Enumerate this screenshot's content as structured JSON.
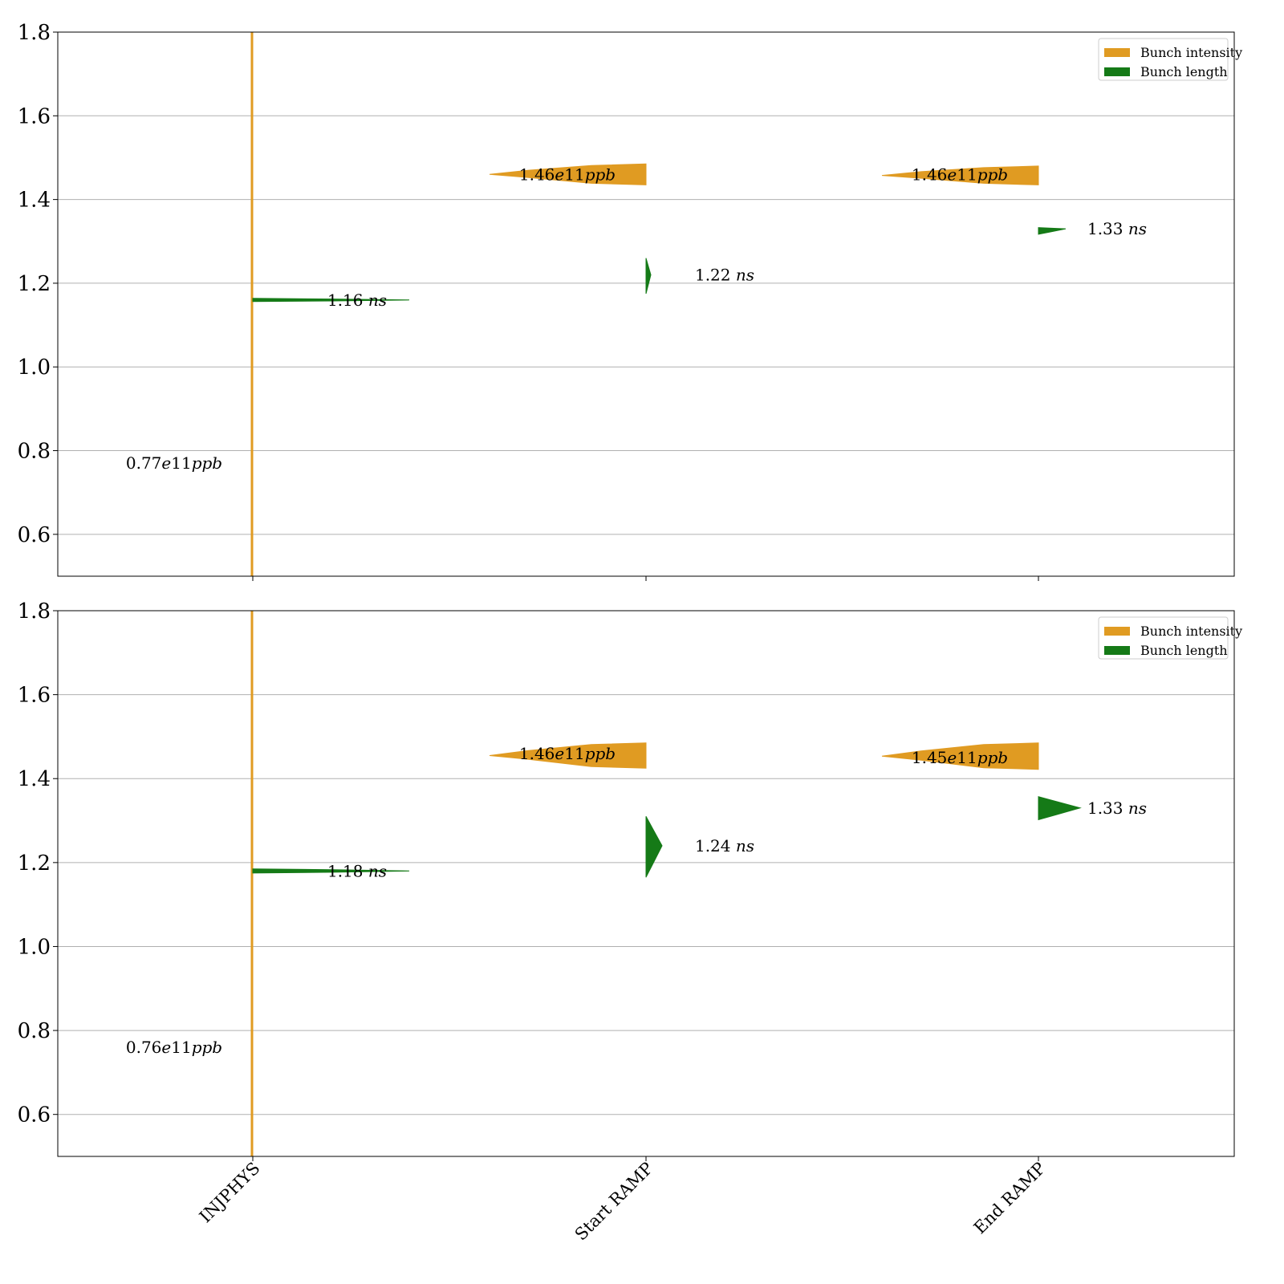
{
  "colors": {
    "intensity": "#e09b22",
    "length": "#157a17",
    "grid": "#b0b0b0",
    "axis": "#000000"
  },
  "chart_data": [
    {
      "type": "violin",
      "categories": [
        "INJPHYS",
        "Start RAMP",
        "End RAMP"
      ],
      "ylim": [
        0.5,
        1.8
      ],
      "yticks": [
        "0.6",
        "0.8",
        "1.0",
        "1.2",
        "1.4",
        "1.6",
        "1.8"
      ],
      "grid": true,
      "legend_position": "top-right",
      "legend": [
        "Bunch intensity",
        "Bunch length"
      ],
      "show_xtick_labels": false,
      "series": [
        {
          "name": "Bunch intensity",
          "side": "left",
          "medians": [
            0.77,
            1.46,
            1.46
          ],
          "labels": [
            "0.77e11ppb",
            "1.46e11ppb",
            "1.46e11ppb"
          ],
          "ranges": [
            [
              0.5,
              1.8
            ],
            [
              1.435,
              1.485
            ],
            [
              1.435,
              1.48
            ]
          ]
        },
        {
          "name": "Bunch length",
          "side": "right",
          "medians": [
            1.16,
            1.22,
            1.33
          ],
          "labels": [
            "1.16 ns",
            "1.22 ns",
            "1.33 ns"
          ],
          "ranges": [
            [
              1.159,
              1.161
            ],
            [
              1.175,
              1.26
            ],
            [
              1.317,
              1.333
            ]
          ]
        }
      ]
    },
    {
      "type": "violin",
      "categories": [
        "INJPHYS",
        "Start RAMP",
        "End RAMP"
      ],
      "ylim": [
        0.5,
        1.8
      ],
      "yticks": [
        "0.6",
        "0.8",
        "1.0",
        "1.2",
        "1.4",
        "1.6",
        "1.8"
      ],
      "grid": true,
      "legend_position": "top-right",
      "legend": [
        "Bunch intensity",
        "Bunch length"
      ],
      "show_xtick_labels": true,
      "series": [
        {
          "name": "Bunch intensity",
          "side": "left",
          "medians": [
            0.76,
            1.46,
            1.45
          ],
          "labels": [
            "0.76e11ppb",
            "1.46e11ppb",
            "1.45e11ppb"
          ],
          "ranges": [
            [
              0.5,
              1.8
            ],
            [
              1.425,
              1.485
            ],
            [
              1.422,
              1.485
            ]
          ]
        },
        {
          "name": "Bunch length",
          "side": "right",
          "medians": [
            1.18,
            1.24,
            1.33
          ],
          "labels": [
            "1.18 ns",
            "1.24 ns",
            "1.33 ns"
          ],
          "ranges": [
            [
              1.175,
              1.185
            ],
            [
              1.165,
              1.31
            ],
            [
              1.302,
              1.357
            ]
          ]
        }
      ]
    }
  ]
}
